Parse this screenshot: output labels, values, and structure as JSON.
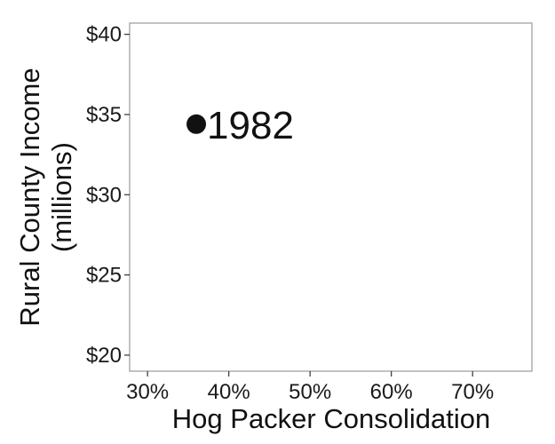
{
  "chart_data": {
    "type": "scatter",
    "xlabel": "Hog Packer Consolidation",
    "ylabel_lines": [
      "Rural County Income",
      "(millions)"
    ],
    "x_ticks": [
      {
        "value": 30,
        "label": "30%"
      },
      {
        "value": 40,
        "label": "40%"
      },
      {
        "value": 50,
        "label": "50%"
      },
      {
        "value": 60,
        "label": "60%"
      },
      {
        "value": 70,
        "label": "70%"
      }
    ],
    "y_ticks": [
      {
        "value": 20,
        "label": "$20"
      },
      {
        "value": 25,
        "label": "$25"
      },
      {
        "value": 30,
        "label": "$30"
      },
      {
        "value": 35,
        "label": "$35"
      },
      {
        "value": 40,
        "label": "$40"
      }
    ],
    "xlim": [
      27.8,
      77.3
    ],
    "ylim": [
      19.0,
      40.7
    ],
    "points": [
      {
        "x": 36,
        "y": 34.4,
        "label": "1982"
      }
    ],
    "point_color": "#111111",
    "grid": false,
    "legend": "none"
  }
}
